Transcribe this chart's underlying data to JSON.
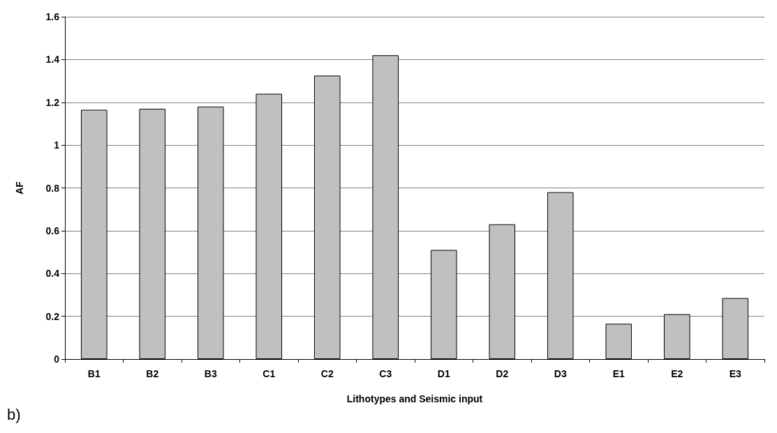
{
  "chart_data": {
    "type": "bar",
    "xlabel": "Lithotypes and Seismic input",
    "ylabel": "AF",
    "categories": [
      "B1",
      "B2",
      "B3",
      "C1",
      "C2",
      "C3",
      "D1",
      "D2",
      "D3",
      "E1",
      "E2",
      "E3"
    ],
    "values": [
      1.165,
      1.17,
      1.18,
      1.24,
      1.325,
      1.42,
      0.51,
      0.63,
      0.78,
      0.165,
      0.21,
      0.285
    ],
    "color": "#c0c0c0",
    "ylim": [
      0,
      1.6
    ],
    "yticks": [
      0,
      0.2,
      0.4,
      0.6,
      0.8,
      1,
      1.2,
      1.4,
      1.6
    ],
    "grid": "y",
    "annotations": [
      "b)"
    ]
  }
}
